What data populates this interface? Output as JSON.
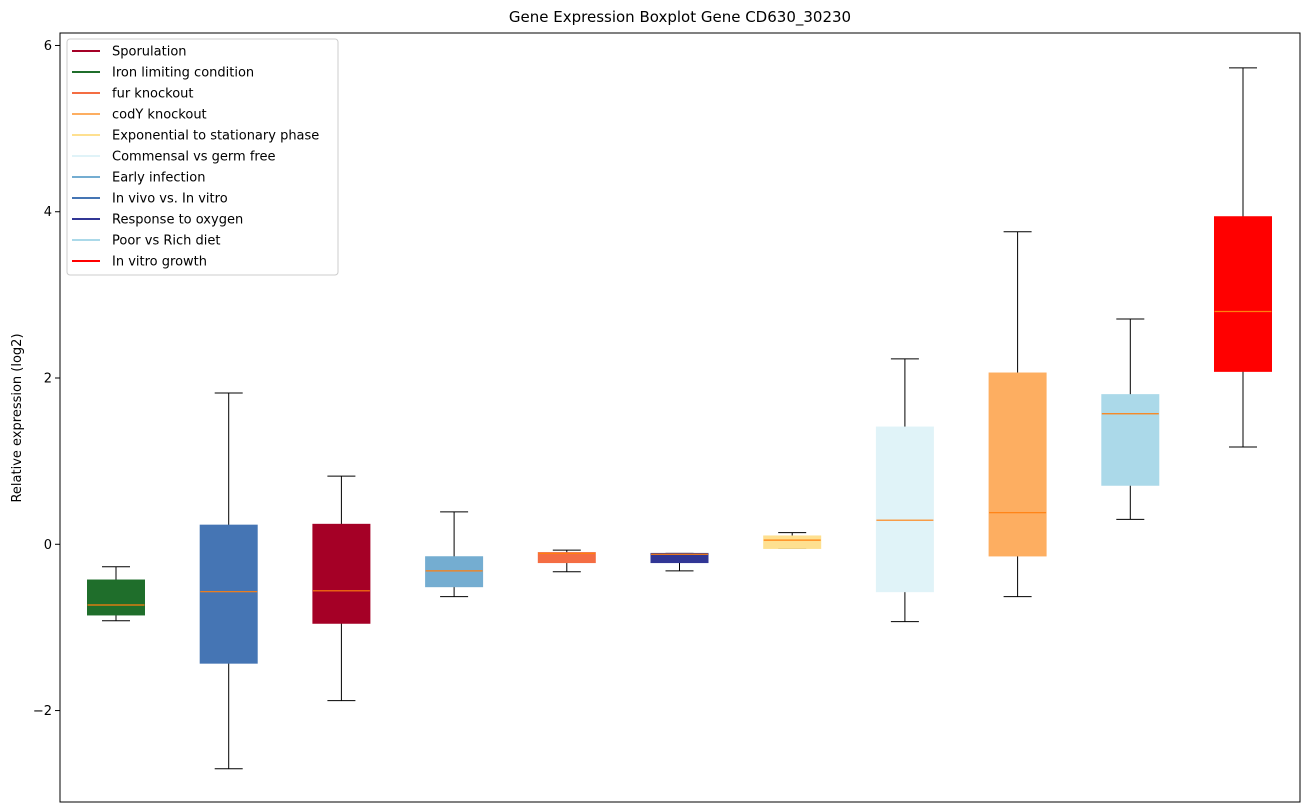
{
  "chart_data": {
    "type": "boxplot",
    "title": "Gene Expression Boxplot Gene CD630_30230",
    "xlabel": "",
    "ylabel": "Relative expression (log2)",
    "ylim": [
      -3.1,
      6.15
    ],
    "yticks": [
      -2,
      0,
      2,
      4,
      6
    ],
    "ytick_labels": [
      "−2",
      "0",
      "2",
      "4",
      "6"
    ],
    "legend_position": "upper-left",
    "legend": [
      {
        "label": "Sporulation",
        "color": "#a50026"
      },
      {
        "label": "Iron limiting condition",
        "color": "#1f6e2b"
      },
      {
        "label": "fur knockout",
        "color": "#f46d43"
      },
      {
        "label": "codY knockout",
        "color": "#fdae61"
      },
      {
        "label": "Exponential to stationary phase",
        "color": "#fee090"
      },
      {
        "label": "Commensal vs germ free",
        "color": "#e0f3f8"
      },
      {
        "label": "Early infection",
        "color": "#74add1"
      },
      {
        "label": "In vivo vs. In vitro",
        "color": "#4575b4"
      },
      {
        "label": "Response to oxygen",
        "color": "#313695"
      },
      {
        "label": "Poor vs Rich diet",
        "color": "#abd9e9"
      },
      {
        "label": "In vitro growth",
        "color": "#ff0000"
      }
    ],
    "boxes": [
      {
        "group": "Iron limiting condition",
        "color": "#1f6e2b",
        "whisker_low": -0.92,
        "q1": -0.85,
        "median": -0.73,
        "q3": -0.43,
        "whisker_high": -0.27
      },
      {
        "group": "In vivo vs. In vitro",
        "color": "#4575b4",
        "whisker_low": -2.7,
        "q1": -1.43,
        "median": -0.57,
        "q3": 0.23,
        "whisker_high": 1.82
      },
      {
        "group": "Sporulation",
        "color": "#a50026",
        "whisker_low": -1.88,
        "q1": -0.95,
        "median": -0.56,
        "q3": 0.24,
        "whisker_high": 0.82
      },
      {
        "group": "Early infection",
        "color": "#74add1",
        "whisker_low": -0.63,
        "q1": -0.51,
        "median": -0.32,
        "q3": -0.15,
        "whisker_high": 0.39
      },
      {
        "group": "fur knockout",
        "color": "#f46d43",
        "whisker_low": -0.33,
        "q1": -0.22,
        "median": -0.11,
        "q3": -0.1,
        "whisker_high": -0.07
      },
      {
        "group": "Response to oxygen",
        "color": "#313695",
        "whisker_low": -0.32,
        "q1": -0.22,
        "median": -0.12,
        "q3": -0.11,
        "whisker_high": -0.11
      },
      {
        "group": "Exponential to stationary phase",
        "color": "#fee090",
        "whisker_low": -0.05,
        "q1": -0.05,
        "median": 0.05,
        "q3": 0.1,
        "whisker_high": 0.14
      },
      {
        "group": "Commensal vs germ free",
        "color": "#e0f3f8",
        "whisker_low": -0.93,
        "q1": -0.57,
        "median": 0.29,
        "q3": 1.41,
        "whisker_high": 2.23
      },
      {
        "group": "codY knockout",
        "color": "#fdae61",
        "whisker_low": -0.63,
        "q1": -0.14,
        "median": 0.38,
        "q3": 2.06,
        "whisker_high": 3.76
      },
      {
        "group": "Poor vs Rich diet",
        "color": "#abd9e9",
        "whisker_low": 0.3,
        "q1": 0.71,
        "median": 1.57,
        "q3": 1.8,
        "whisker_high": 2.71
      },
      {
        "group": "In vitro growth",
        "color": "#ff0000",
        "whisker_low": 1.17,
        "q1": 2.08,
        "median": 2.8,
        "q3": 3.94,
        "whisker_high": 5.73
      }
    ],
    "median_color": "#ff7f0e"
  }
}
